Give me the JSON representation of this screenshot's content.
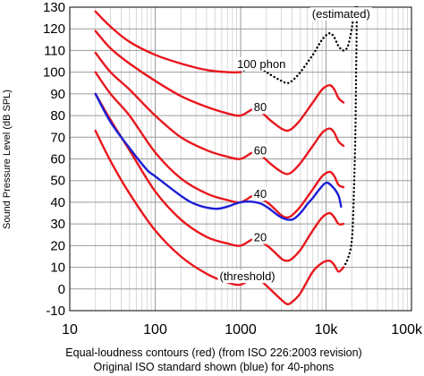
{
  "chart_data": {
    "type": "line",
    "ylabel": "Sound Pressure Level (dB SPL)",
    "caption": [
      "Equal-loudness contours (red) (from ISO 226:2003 revision)",
      "Original ISO standard shown (blue) for 40-phons"
    ],
    "xscale": "log",
    "xlim": [
      10,
      100000
    ],
    "ylim": [
      -10,
      130
    ],
    "grid": true,
    "xticks": [
      10,
      100,
      1000,
      10000,
      100000
    ],
    "xtick_labels": [
      "10",
      "100",
      "1000",
      "10k",
      "100k"
    ],
    "yticks": [
      -10,
      0,
      10,
      20,
      30,
      40,
      50,
      60,
      70,
      80,
      90,
      100,
      110,
      120,
      130
    ],
    "annotations": [
      {
        "text": "(estimated)",
        "x": 15000,
        "y": 125
      },
      {
        "text": "100 phon",
        "x": 1750,
        "y": 102
      },
      {
        "text": "80",
        "x": 1700,
        "y": 82
      },
      {
        "text": "60",
        "x": 1700,
        "y": 62
      },
      {
        "text": "40",
        "x": 1700,
        "y": 42
      },
      {
        "text": "20",
        "x": 1700,
        "y": 22
      },
      {
        "text": "(threshold)",
        "x": 1200,
        "y": 4
      }
    ],
    "colors": {
      "iso2003": "#e8171d",
      "original": "#1b1fd6",
      "estimated": "#000000"
    },
    "series": [
      {
        "group": "iso2003",
        "style": "solid",
        "x": [
          20,
          30,
          50,
          100,
          200,
          400,
          700,
          1000,
          1400,
          1700,
          2200,
          3000,
          3500,
          4000,
          5000,
          7000,
          9000,
          11000,
          12500,
          14000,
          16000
        ],
        "y": [
          73,
          59,
          44,
          27,
          15,
          7,
          3,
          2,
          5,
          4,
          0,
          -5,
          -7,
          -6,
          -2,
          8,
          12,
          13,
          11,
          8,
          10
        ]
      },
      {
        "group": "iso2003",
        "style": "solid",
        "x": [
          20,
          30,
          50,
          100,
          200,
          400,
          700,
          1000,
          1400,
          1700,
          2200,
          3000,
          3500,
          4000,
          5000,
          7000,
          9000,
          11000,
          12500,
          14000,
          16000
        ],
        "y": [
          90,
          78,
          64,
          45,
          32,
          24,
          21,
          20,
          23,
          22,
          19,
          14,
          13,
          14,
          18,
          27,
          33,
          35,
          33,
          30,
          30
        ]
      },
      {
        "group": "iso2003",
        "style": "solid",
        "x": [
          20,
          30,
          50,
          100,
          200,
          400,
          700,
          1000,
          1400,
          1700,
          2200,
          3000,
          3500,
          4000,
          5000,
          7000,
          9000,
          11000,
          12500,
          14000,
          16000
        ],
        "y": [
          100,
          90,
          80,
          63,
          51,
          44,
          41,
          40,
          43,
          42,
          39,
          34,
          33,
          34,
          38,
          46,
          52,
          54,
          52,
          48,
          47
        ]
      },
      {
        "group": "iso2003",
        "style": "solid",
        "x": [
          20,
          30,
          50,
          100,
          200,
          400,
          700,
          1000,
          1400,
          1700,
          2200,
          3000,
          3500,
          4000,
          5000,
          7000,
          9000,
          11000,
          12500,
          14000,
          16000
        ],
        "y": [
          109,
          100,
          92,
          80,
          70,
          64,
          61,
          60,
          63,
          62,
          58,
          54,
          53,
          54,
          58,
          66,
          72,
          74,
          72,
          68,
          66
        ]
      },
      {
        "group": "iso2003",
        "style": "solid",
        "x": [
          20,
          30,
          50,
          100,
          200,
          400,
          700,
          1000,
          1400,
          1700,
          2200,
          3000,
          3500,
          4000,
          5000,
          7000,
          9000,
          11000,
          12500,
          14000,
          16000
        ],
        "y": [
          119,
          111,
          104,
          96,
          89,
          84,
          81,
          80,
          83,
          82,
          78,
          74,
          73,
          74,
          78,
          86,
          92,
          94,
          92,
          88,
          86
        ]
      },
      {
        "group": "iso2003",
        "style": "solid",
        "x": [
          20,
          30,
          50,
          100,
          200,
          400,
          700,
          1000
        ],
        "y": [
          128,
          121,
          114,
          108,
          104,
          101,
          100,
          100
        ]
      },
      {
        "group": "original",
        "style": "solid",
        "x": [
          20,
          30,
          50,
          80,
          100,
          200,
          300,
          500,
          700,
          1000,
          1500,
          2000,
          3000,
          4000,
          5000,
          6000,
          7000,
          8000,
          10000,
          12000,
          14000,
          15000
        ],
        "y": [
          90,
          77,
          65,
          55,
          52,
          43,
          39,
          37,
          38,
          40,
          40,
          38,
          33,
          32,
          35,
          39,
          42,
          45,
          49,
          47,
          43,
          38
        ]
      },
      {
        "group": "estimated",
        "style": "dotted",
        "x": [
          1000,
          1400,
          1700,
          2200,
          3000,
          3500,
          4000,
          5000,
          7000,
          9000,
          11000,
          12500,
          14000,
          16000,
          18000,
          20000,
          21000,
          22000
        ],
        "y": [
          100,
          103,
          102,
          99,
          96,
          95,
          96,
          100,
          108,
          115,
          118,
          116,
          112,
          110,
          112,
          120,
          126,
          130
        ]
      },
      {
        "group": "estimated",
        "style": "dotted",
        "x": [
          16000,
          18000,
          20000,
          21000,
          22000,
          22500,
          23000
        ],
        "y": [
          10,
          14,
          22,
          40,
          70,
          100,
          130
        ]
      }
    ]
  }
}
